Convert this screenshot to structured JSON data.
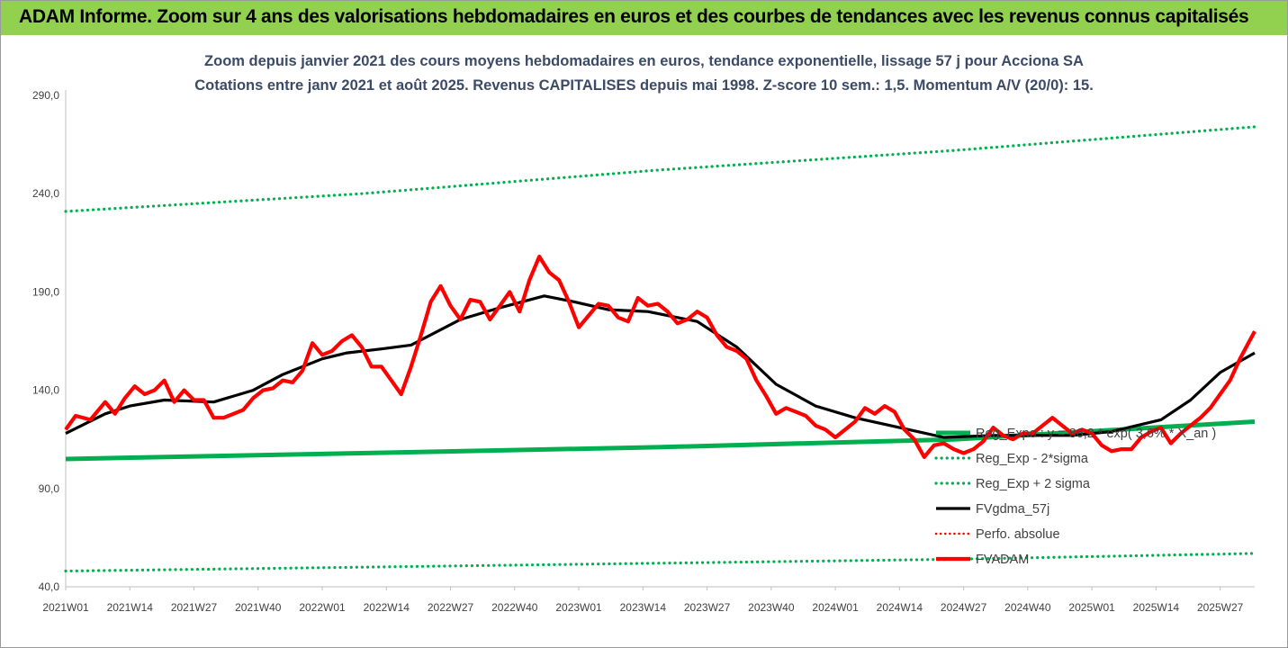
{
  "header": {
    "title": "ADAM Informe. Zoom sur 4 ans des valorisations hebdomadaires en euros et des courbes de tendances avec les revenus connus capitalisés"
  },
  "chart_data": {
    "type": "line",
    "title": "Zoom depuis janvier 2021 des cours moyens hebdomadaires en euros, tendance exponentielle, lissage 57 j pour Acciona SA",
    "subtitle": "Cotations entre janv 2021 et août 2025. Revenus CAPITALISES depuis mai 1998. Z-score 10 sem.: 1,5. Momentum A/V (20/0): 15.",
    "xlabel": "",
    "ylabel": "",
    "ylim": [
      40,
      290
    ],
    "y_ticks": [
      "290,0",
      "240,0",
      "190,0",
      "140,0",
      "90,0",
      "40,0"
    ],
    "x_ticks": [
      "2021W01",
      "2021W14",
      "2021W27",
      "2021W40",
      "2022W01",
      "2022W14",
      "2022W27",
      "2022W40",
      "2023W01",
      "2023W14",
      "2023W27",
      "2023W40",
      "2024W01",
      "2024W14",
      "2024W27",
      "2024W40",
      "2025W01",
      "2025W14",
      "2025W27"
    ],
    "grid": false,
    "legend_position": "bottom-right",
    "colors": {
      "green": "#00b050",
      "black": "#000000",
      "red": "#ff0000"
    },
    "series": [
      {
        "name": "Reg_Expo : y = 86,2 * exp( 3,6% * X_an )",
        "style": "solid",
        "color": "#00b050",
        "x": [
          0,
          60,
          120,
          180,
          241
        ],
        "values": [
          105,
          108,
          111,
          115,
          124
        ]
      },
      {
        "name": "Reg_Exp - 2*sigma",
        "style": "dotted",
        "color": "#00b050",
        "x": [
          0,
          60,
          120,
          180,
          241
        ],
        "values": [
          48,
          50,
          52,
          54,
          57
        ]
      },
      {
        "name": "Reg_Exp + 2 sigma",
        "style": "dotted",
        "color": "#00b050",
        "x": [
          0,
          60,
          120,
          180,
          241
        ],
        "values": [
          231,
          240,
          252,
          262,
          274
        ]
      },
      {
        "name": "FVgdma_57j",
        "style": "solid",
        "color": "#000000",
        "x": [
          0,
          8,
          13,
          20,
          30,
          38,
          44,
          52,
          57,
          64,
          70,
          80,
          88,
          97,
          103,
          110,
          118,
          128,
          136,
          144,
          152,
          160,
          169,
          178,
          188,
          196,
          204,
          212,
          222,
          228,
          234,
          241
        ],
        "values": [
          118,
          128,
          132,
          135,
          134,
          140,
          148,
          156,
          159,
          161,
          163,
          176,
          182,
          188,
          185,
          181,
          180,
          175,
          162,
          143,
          132,
          126,
          121,
          116,
          117,
          117,
          117,
          119,
          125,
          135,
          149,
          159
        ]
      },
      {
        "name": "Perfo. absolue",
        "style": "dotted",
        "color": "#ff0000",
        "x": [],
        "values": []
      },
      {
        "name": "FVADAM",
        "style": "solid",
        "color": "#ff0000",
        "x": [
          0,
          2,
          5,
          8,
          10,
          12,
          14,
          16,
          18,
          20,
          22,
          24,
          26,
          28,
          30,
          32,
          34,
          36,
          38,
          40,
          42,
          44,
          46,
          48,
          50,
          52,
          54,
          56,
          58,
          60,
          62,
          64,
          66,
          68,
          70,
          72,
          74,
          76,
          78,
          80,
          82,
          84,
          86,
          88,
          90,
          92,
          94,
          96,
          98,
          100,
          102,
          104,
          106,
          108,
          110,
          112,
          114,
          116,
          118,
          120,
          122,
          124,
          126,
          128,
          130,
          132,
          134,
          136,
          138,
          140,
          142,
          144,
          146,
          148,
          150,
          152,
          154,
          156,
          158,
          160,
          162,
          164,
          166,
          168,
          170,
          172,
          174,
          176,
          178,
          180,
          182,
          184,
          186,
          188,
          190,
          192,
          194,
          196,
          198,
          200,
          202,
          204,
          206,
          208,
          210,
          212,
          214,
          216,
          218,
          220,
          222,
          224,
          226,
          228,
          230,
          232,
          234,
          236,
          238,
          241
        ],
        "values": [
          120,
          127,
          125,
          134,
          128,
          136,
          142,
          138,
          140,
          145,
          134,
          140,
          135,
          135,
          126,
          126,
          128,
          130,
          136,
          140,
          141,
          145,
          144,
          150,
          164,
          158,
          160,
          165,
          168,
          162,
          152,
          152,
          145,
          138,
          152,
          168,
          185,
          193,
          183,
          176,
          186,
          185,
          176,
          183,
          190,
          180,
          196,
          208,
          200,
          196,
          185,
          172,
          178,
          184,
          183,
          177,
          175,
          187,
          183,
          184,
          180,
          174,
          176,
          180,
          177,
          168,
          162,
          160,
          156,
          145,
          137,
          128,
          131,
          129,
          127,
          122,
          120,
          116,
          120,
          124,
          131,
          128,
          132,
          129,
          120,
          115,
          106,
          112,
          113,
          110,
          108,
          110,
          114,
          121,
          117,
          115,
          118,
          118,
          122,
          126,
          122,
          118,
          120,
          118,
          112,
          109,
          110,
          110,
          116,
          119,
          121,
          113,
          118,
          122,
          126,
          131,
          138,
          145,
          156,
          170
        ]
      }
    ]
  }
}
